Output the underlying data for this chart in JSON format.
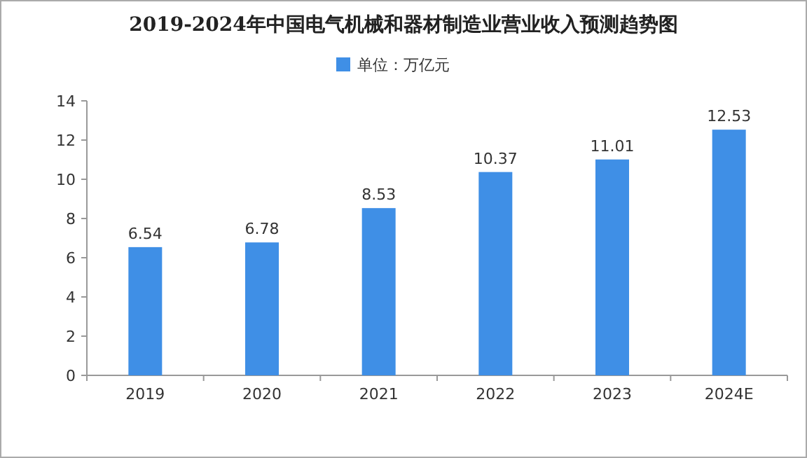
{
  "chart_data": {
    "type": "bar",
    "title": "2019-2024年中国电气机械和器材制造业营业收入预测趋势图",
    "categories": [
      "2019",
      "2020",
      "2021",
      "2022",
      "2023",
      "2024E"
    ],
    "series": [
      {
        "name": "单位：万亿元",
        "color": "#3f8fe6",
        "values": [
          6.54,
          6.78,
          8.53,
          10.37,
          11.01,
          12.53
        ]
      }
    ],
    "ylim": [
      0,
      14
    ],
    "yticks": [
      0,
      2,
      4,
      6,
      8,
      10,
      12,
      14
    ],
    "data_labels": true,
    "legend": "top",
    "grid": false
  }
}
